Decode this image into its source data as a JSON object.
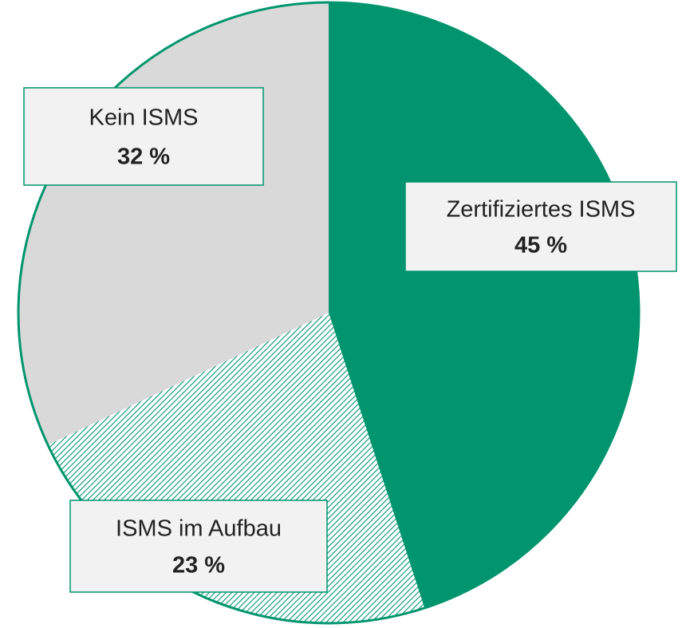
{
  "chart_data": {
    "type": "pie",
    "categories": [
      "Zertifiziertes ISMS",
      "ISMS im Aufbau",
      "Kein ISMS"
    ],
    "values": [
      45,
      23,
      32
    ],
    "value_labels": [
      "45 %",
      "23 %",
      "32 %"
    ],
    "colors": [
      "#00956e",
      "#00956e",
      "#d9d9d9"
    ],
    "hatch": [
      false,
      true,
      false
    ],
    "edge_color": "#00956e"
  }
}
